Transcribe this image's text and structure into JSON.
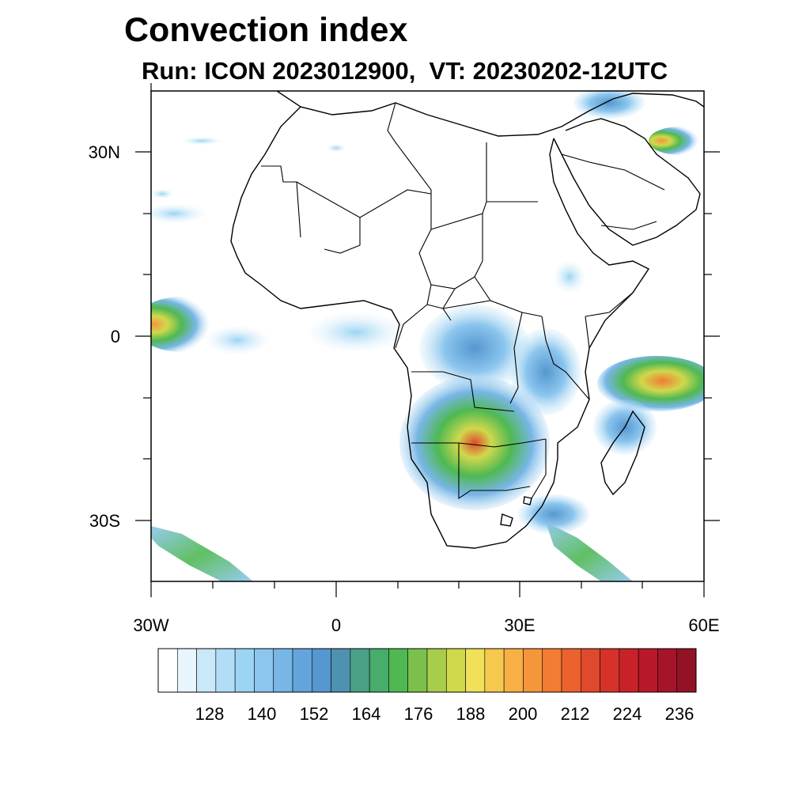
{
  "title": "Convection index",
  "subtitle": "Run: ICON 2023012900,  VT: 20230202-12UTC",
  "lat_labels": [
    "30N",
    "0",
    "30S"
  ],
  "lon_labels": [
    "30W",
    "0",
    "30E",
    "60E"
  ],
  "colorbar": {
    "labels": [
      "128",
      "140",
      "152",
      "164",
      "176",
      "188",
      "200",
      "212",
      "224",
      "236"
    ],
    "colors": [
      "#ffffff",
      "#e8f5fc",
      "#c9e8f8",
      "#b1def6",
      "#9cd4f4",
      "#8cc6ee",
      "#78b6e6",
      "#64a4dc",
      "#5597cf",
      "#4f92b0",
      "#4aa087",
      "#47ac6c",
      "#4fb852",
      "#7cc04c",
      "#a8cc4c",
      "#d0d84c",
      "#f0e05a",
      "#f6c94e",
      "#f8b046",
      "#f6963c",
      "#f27c34",
      "#ec622e",
      "#e04a2c",
      "#d6322a",
      "#c82228",
      "#b8182a",
      "#a6142a",
      "#921226"
    ]
  }
}
